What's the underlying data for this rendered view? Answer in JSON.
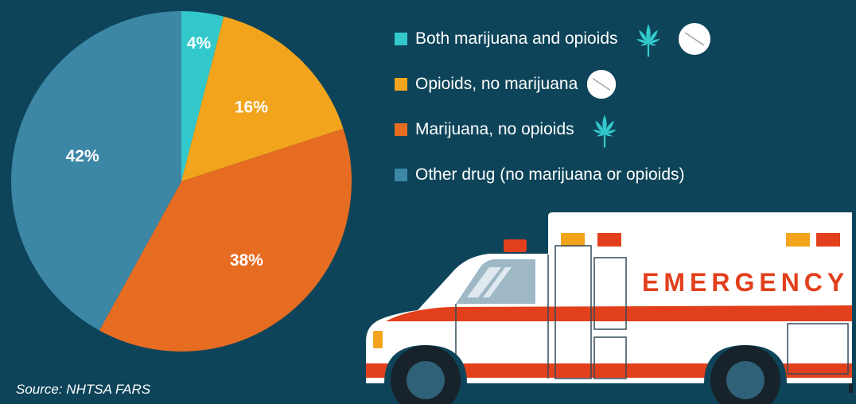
{
  "chart_data": {
    "type": "pie",
    "series": [
      {
        "name": "Both marijuana and opioids",
        "value": 4,
        "label": "4%",
        "color": "#33c9cc"
      },
      {
        "name": "Opioids, no marijuana",
        "value": 16,
        "label": "16%",
        "color": "#f2a51c"
      },
      {
        "name": "Marijuana, no opioids",
        "value": 38,
        "label": "38%",
        "color": "#e66c22"
      },
      {
        "name": "Other drug (no marijuana or opioids)",
        "value": 42,
        "label": "42%",
        "color": "#3c86a6"
      }
    ],
    "legend_position": "right"
  },
  "legend": [
    {
      "label": "Both marijuana and opioids",
      "icons": [
        "marijuana-leaf-icon",
        "pill-icon"
      ]
    },
    {
      "label": "Opioids, no marijuana",
      "icons": [
        "pill-icon"
      ]
    },
    {
      "label": "Marijuana, no opioids",
      "icons": [
        "marijuana-leaf-icon"
      ]
    },
    {
      "label": "Other drug (no marijuana or opioids)",
      "icons": []
    }
  ],
  "ambulance": {
    "text": "EMERGENCY",
    "icon": "ambulance-icon"
  },
  "source": "Source: NHTSA FARS",
  "colors": {
    "background": "#0d4459",
    "text": "#ffffff",
    "ambulance_red": "#e2401c",
    "ambulance_yellow": "#f2a51c"
  }
}
